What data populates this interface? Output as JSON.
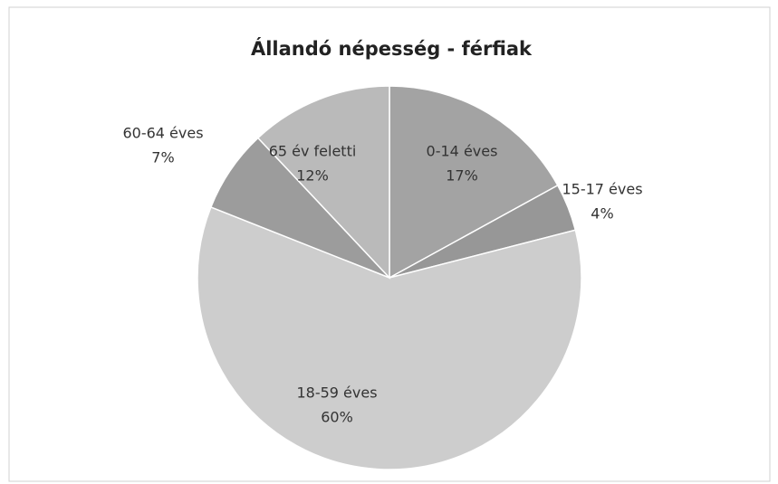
{
  "chart_data": {
    "type": "pie",
    "title": "Állandó népesség - férfiak",
    "categories": [
      "0-14 éves",
      "15-17 éves",
      "18-59 éves",
      "60-64 éves",
      "65 év feletti"
    ],
    "values": [
      17,
      4,
      60,
      7,
      12
    ],
    "value_labels": [
      "17%",
      "4%",
      "60%",
      "7%",
      "12%"
    ],
    "colors": [
      "#a3a3a3",
      "#979797",
      "#cdcdcd",
      "#9c9c9c",
      "#bababa"
    ]
  }
}
